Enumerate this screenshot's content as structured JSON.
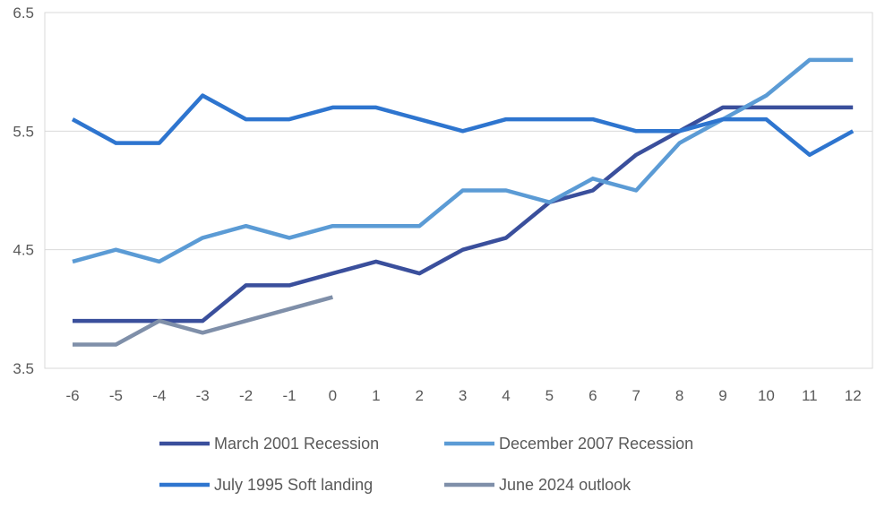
{
  "chart_data": {
    "type": "line",
    "title": "",
    "xlabel": "",
    "ylabel": "",
    "x": [
      -6,
      -5,
      -4,
      -3,
      -2,
      -1,
      0,
      1,
      2,
      3,
      4,
      5,
      6,
      7,
      8,
      9,
      10,
      11,
      12
    ],
    "x_tick_labels": [
      "-6",
      "-5",
      "-4",
      "-3",
      "-2",
      "-1",
      "0",
      "1",
      "2",
      "3",
      "4",
      "5",
      "6",
      "7",
      "8",
      "9",
      "10",
      "11",
      "12"
    ],
    "ylim": [
      3.5,
      6.5
    ],
    "y_ticks": [
      3.5,
      4.5,
      5.5,
      6.5
    ],
    "y_tick_labels": [
      "3.5",
      "4.5",
      "5.5",
      "6.5"
    ],
    "grid": true,
    "legend_position": "bottom",
    "series": [
      {
        "name": "March 2001 Recession",
        "color": "#3a4f9c",
        "values": [
          3.9,
          3.9,
          3.9,
          3.9,
          4.2,
          4.2,
          4.3,
          4.4,
          4.3,
          4.5,
          4.6,
          4.9,
          5.0,
          5.3,
          5.5,
          5.7,
          5.7,
          5.7,
          5.7
        ]
      },
      {
        "name": "December 2007 Recession",
        "color": "#5b9bd5",
        "values": [
          4.4,
          4.5,
          4.4,
          4.6,
          4.7,
          4.6,
          4.7,
          4.7,
          4.7,
          5.0,
          5.0,
          4.9,
          5.1,
          5.0,
          5.4,
          5.6,
          5.8,
          6.1,
          6.1
        ]
      },
      {
        "name": "July 1995 Soft landing",
        "color": "#2e75cf",
        "values": [
          5.6,
          5.4,
          5.4,
          5.8,
          5.6,
          5.6,
          5.7,
          5.7,
          5.6,
          5.5,
          5.6,
          5.6,
          5.6,
          5.5,
          5.5,
          5.6,
          5.6,
          5.3,
          5.5
        ]
      },
      {
        "name": "June 2024 outlook",
        "color": "#7f8fa9",
        "values": [
          3.7,
          3.7,
          3.9,
          3.8,
          3.9,
          4.0,
          4.1,
          null,
          null,
          null,
          null,
          null,
          null,
          null,
          null,
          null,
          null,
          null,
          null
        ]
      }
    ]
  }
}
